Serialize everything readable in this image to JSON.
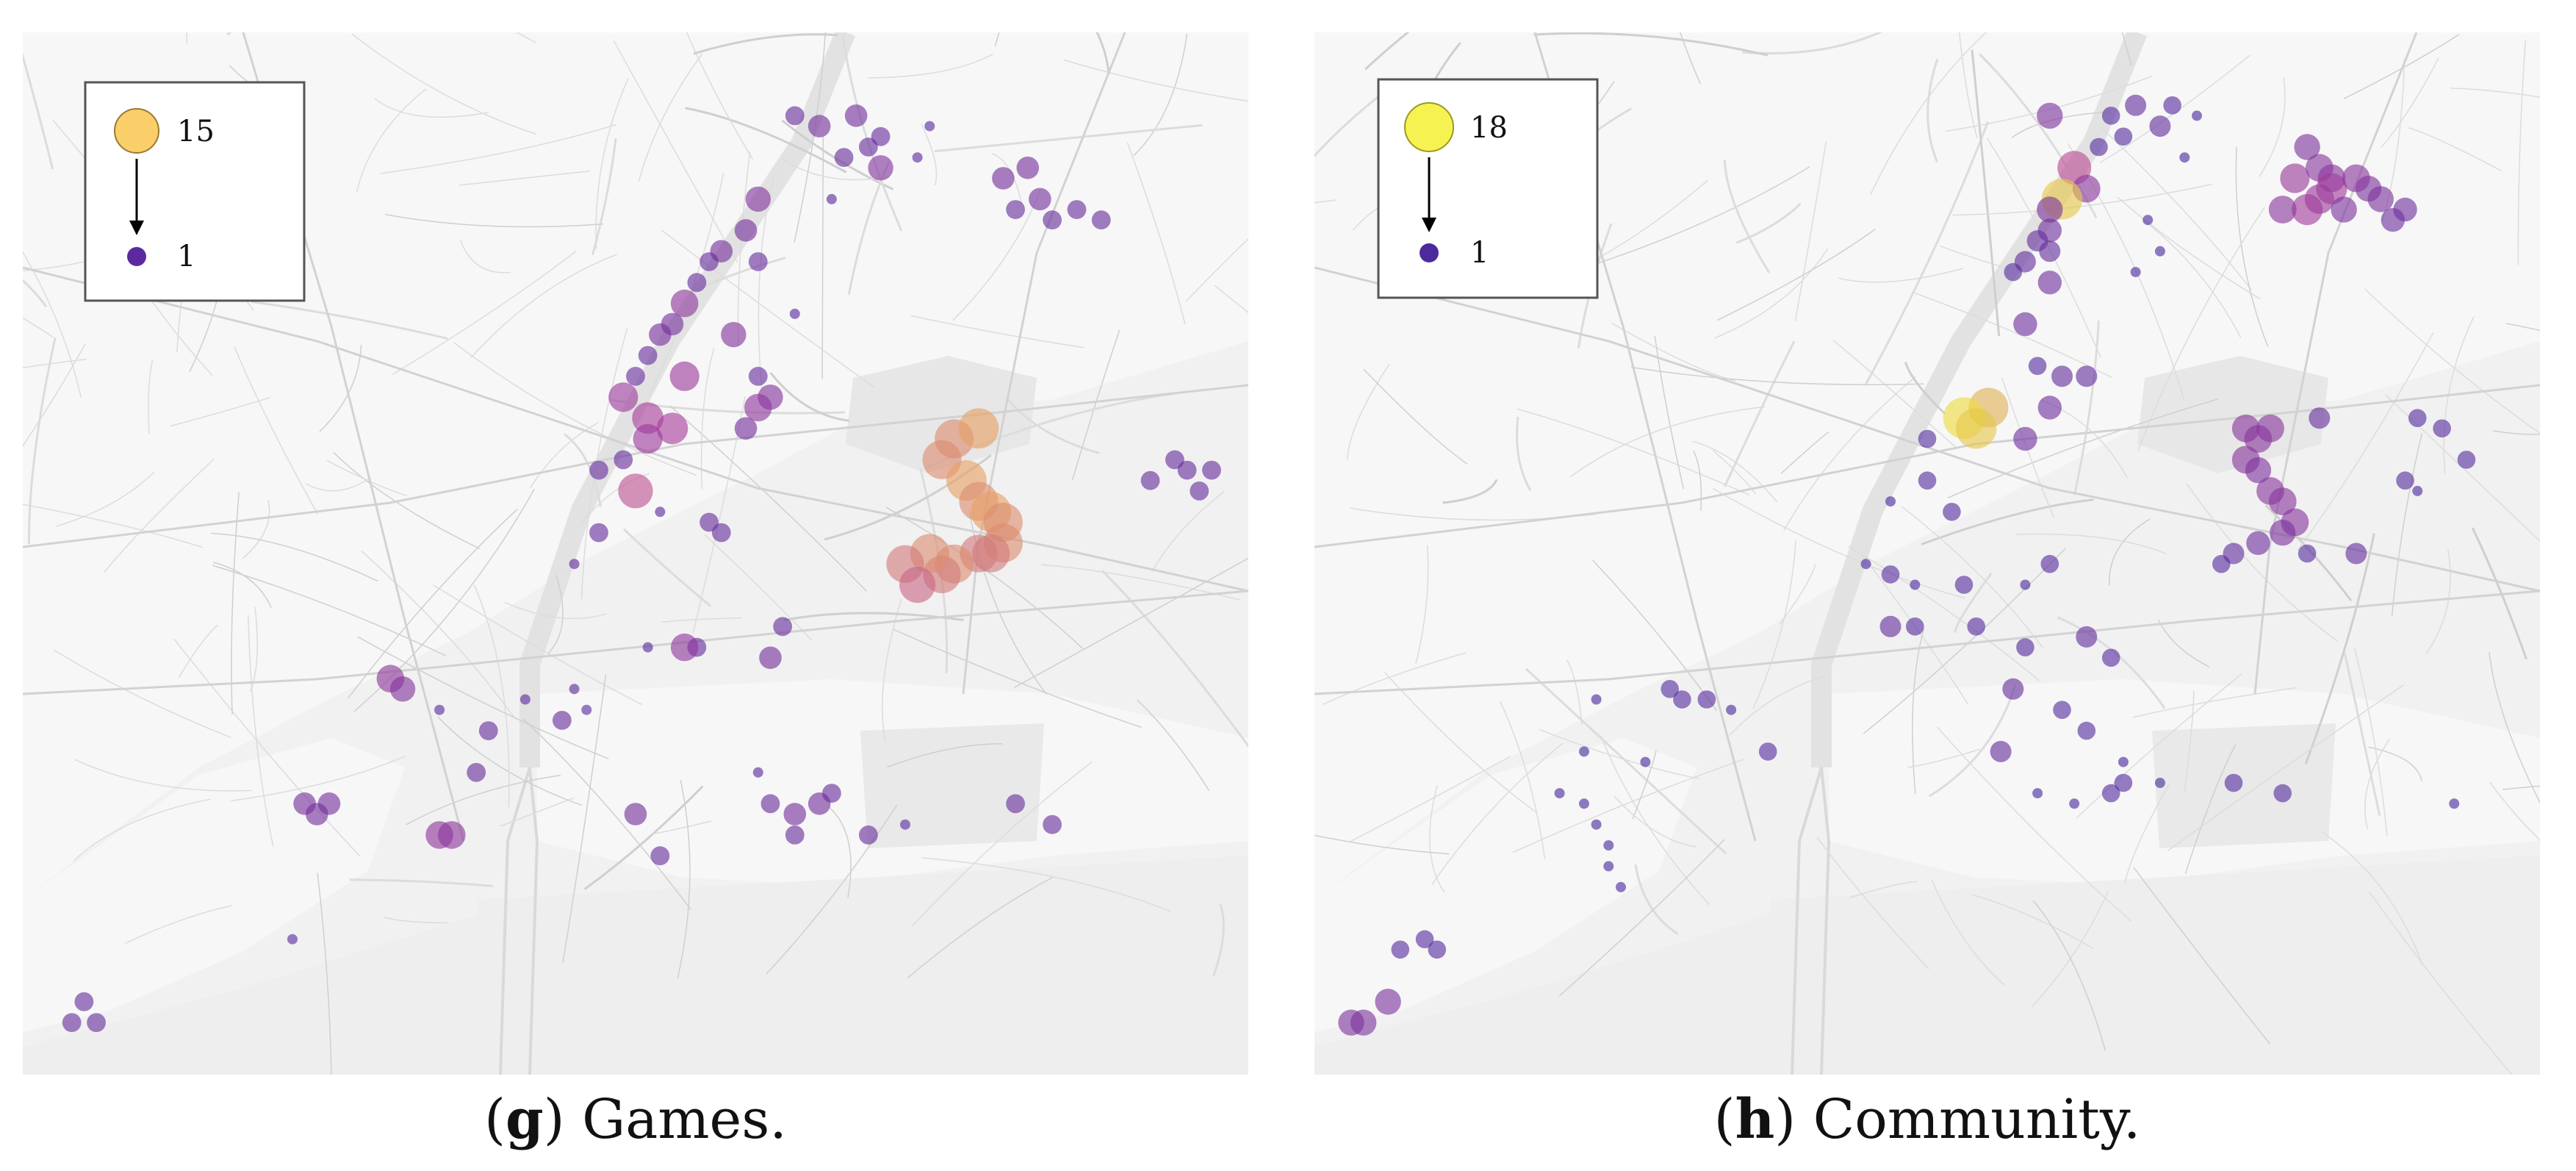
{
  "panels": [
    {
      "id": "g",
      "legend": {
        "max_label": "15",
        "min_label": "1",
        "max_color": "#F9C74F",
        "min_color": "#5B2A9E"
      },
      "caption": {
        "letter": "g",
        "text": "Games."
      },
      "points": [
        {
          "x": 0.63,
          "y": 0.08,
          "v": 2
        },
        {
          "x": 0.65,
          "y": 0.09,
          "v": 3
        },
        {
          "x": 0.68,
          "y": 0.08,
          "v": 3
        },
        {
          "x": 0.69,
          "y": 0.11,
          "v": 2
        },
        {
          "x": 0.7,
          "y": 0.1,
          "v": 2
        },
        {
          "x": 0.67,
          "y": 0.12,
          "v": 2
        },
        {
          "x": 0.74,
          "y": 0.09,
          "v": 1
        },
        {
          "x": 0.73,
          "y": 0.12,
          "v": 1
        },
        {
          "x": 0.8,
          "y": 0.14,
          "v": 3
        },
        {
          "x": 0.82,
          "y": 0.13,
          "v": 3
        },
        {
          "x": 0.83,
          "y": 0.16,
          "v": 3
        },
        {
          "x": 0.81,
          "y": 0.17,
          "v": 2
        },
        {
          "x": 0.84,
          "y": 0.18,
          "v": 2
        },
        {
          "x": 0.86,
          "y": 0.17,
          "v": 2
        },
        {
          "x": 0.88,
          "y": 0.18,
          "v": 2
        },
        {
          "x": 0.7,
          "y": 0.13,
          "v": 4
        },
        {
          "x": 0.66,
          "y": 0.16,
          "v": 1
        },
        {
          "x": 0.6,
          "y": 0.16,
          "v": 4
        },
        {
          "x": 0.59,
          "y": 0.19,
          "v": 3
        },
        {
          "x": 0.57,
          "y": 0.21,
          "v": 3
        },
        {
          "x": 0.56,
          "y": 0.22,
          "v": 2
        },
        {
          "x": 0.55,
          "y": 0.24,
          "v": 2
        },
        {
          "x": 0.54,
          "y": 0.26,
          "v": 5
        },
        {
          "x": 0.53,
          "y": 0.28,
          "v": 3
        },
        {
          "x": 0.52,
          "y": 0.29,
          "v": 3
        },
        {
          "x": 0.51,
          "y": 0.31,
          "v": 2
        },
        {
          "x": 0.5,
          "y": 0.33,
          "v": 2
        },
        {
          "x": 0.6,
          "y": 0.22,
          "v": 2
        },
        {
          "x": 0.58,
          "y": 0.29,
          "v": 4
        },
        {
          "x": 0.63,
          "y": 0.27,
          "v": 1
        },
        {
          "x": 0.6,
          "y": 0.33,
          "v": 2
        },
        {
          "x": 0.61,
          "y": 0.35,
          "v": 4
        },
        {
          "x": 0.54,
          "y": 0.33,
          "v": 6
        },
        {
          "x": 0.49,
          "y": 0.35,
          "v": 6
        },
        {
          "x": 0.51,
          "y": 0.37,
          "v": 7
        },
        {
          "x": 0.53,
          "y": 0.38,
          "v": 7
        },
        {
          "x": 0.51,
          "y": 0.39,
          "v": 6
        },
        {
          "x": 0.6,
          "y": 0.36,
          "v": 5
        },
        {
          "x": 0.59,
          "y": 0.38,
          "v": 3
        },
        {
          "x": 0.49,
          "y": 0.41,
          "v": 2
        },
        {
          "x": 0.5,
          "y": 0.44,
          "v": 9
        },
        {
          "x": 0.47,
          "y": 0.42,
          "v": 2
        },
        {
          "x": 0.52,
          "y": 0.46,
          "v": 1
        },
        {
          "x": 0.56,
          "y": 0.47,
          "v": 2
        },
        {
          "x": 0.57,
          "y": 0.48,
          "v": 2
        },
        {
          "x": 0.47,
          "y": 0.48,
          "v": 2
        },
        {
          "x": 0.45,
          "y": 0.51,
          "v": 1
        },
        {
          "x": 0.76,
          "y": 0.39,
          "v": 12
        },
        {
          "x": 0.78,
          "y": 0.38,
          "v": 13
        },
        {
          "x": 0.75,
          "y": 0.41,
          "v": 12
        },
        {
          "x": 0.77,
          "y": 0.43,
          "v": 13
        },
        {
          "x": 0.78,
          "y": 0.45,
          "v": 12
        },
        {
          "x": 0.79,
          "y": 0.46,
          "v": 13
        },
        {
          "x": 0.8,
          "y": 0.47,
          "v": 12
        },
        {
          "x": 0.8,
          "y": 0.49,
          "v": 12
        },
        {
          "x": 0.79,
          "y": 0.5,
          "v": 11
        },
        {
          "x": 0.78,
          "y": 0.5,
          "v": 11
        },
        {
          "x": 0.76,
          "y": 0.51,
          "v": 12
        },
        {
          "x": 0.75,
          "y": 0.52,
          "v": 11
        },
        {
          "x": 0.74,
          "y": 0.5,
          "v": 12
        },
        {
          "x": 0.72,
          "y": 0.51,
          "v": 11
        },
        {
          "x": 0.73,
          "y": 0.53,
          "v": 10
        },
        {
          "x": 0.62,
          "y": 0.57,
          "v": 2
        },
        {
          "x": 0.55,
          "y": 0.59,
          "v": 2
        },
        {
          "x": 0.61,
          "y": 0.6,
          "v": 3
        },
        {
          "x": 0.54,
          "y": 0.59,
          "v": 5
        },
        {
          "x": 0.51,
          "y": 0.59,
          "v": 1
        },
        {
          "x": 0.3,
          "y": 0.62,
          "v": 5
        },
        {
          "x": 0.31,
          "y": 0.63,
          "v": 4
        },
        {
          "x": 0.34,
          "y": 0.65,
          "v": 1
        },
        {
          "x": 0.38,
          "y": 0.67,
          "v": 2
        },
        {
          "x": 0.41,
          "y": 0.64,
          "v": 1
        },
        {
          "x": 0.45,
          "y": 0.63,
          "v": 1
        },
        {
          "x": 0.46,
          "y": 0.65,
          "v": 1
        },
        {
          "x": 0.44,
          "y": 0.66,
          "v": 2
        },
        {
          "x": 0.23,
          "y": 0.74,
          "v": 3
        },
        {
          "x": 0.24,
          "y": 0.75,
          "v": 3
        },
        {
          "x": 0.25,
          "y": 0.74,
          "v": 3
        },
        {
          "x": 0.34,
          "y": 0.77,
          "v": 5
        },
        {
          "x": 0.35,
          "y": 0.77,
          "v": 5
        },
        {
          "x": 0.37,
          "y": 0.71,
          "v": 2
        },
        {
          "x": 0.5,
          "y": 0.75,
          "v": 3
        },
        {
          "x": 0.52,
          "y": 0.79,
          "v": 2
        },
        {
          "x": 0.61,
          "y": 0.74,
          "v": 2
        },
        {
          "x": 0.63,
          "y": 0.75,
          "v": 3
        },
        {
          "x": 0.65,
          "y": 0.74,
          "v": 3
        },
        {
          "x": 0.66,
          "y": 0.73,
          "v": 2
        },
        {
          "x": 0.63,
          "y": 0.77,
          "v": 2
        },
        {
          "x": 0.6,
          "y": 0.71,
          "v": 1
        },
        {
          "x": 0.69,
          "y": 0.77,
          "v": 2
        },
        {
          "x": 0.72,
          "y": 0.76,
          "v": 1
        },
        {
          "x": 0.81,
          "y": 0.74,
          "v": 2
        },
        {
          "x": 0.84,
          "y": 0.76,
          "v": 2
        },
        {
          "x": 0.92,
          "y": 0.43,
          "v": 2
        },
        {
          "x": 0.94,
          "y": 0.41,
          "v": 2
        },
        {
          "x": 0.95,
          "y": 0.42,
          "v": 2
        },
        {
          "x": 0.97,
          "y": 0.42,
          "v": 2
        },
        {
          "x": 0.96,
          "y": 0.44,
          "v": 2
        },
        {
          "x": 0.05,
          "y": 0.93,
          "v": 2
        },
        {
          "x": 0.06,
          "y": 0.95,
          "v": 2
        },
        {
          "x": 0.04,
          "y": 0.95,
          "v": 2
        },
        {
          "x": 0.22,
          "y": 0.87,
          "v": 1
        }
      ]
    },
    {
      "id": "h",
      "legend": {
        "max_label": "18",
        "min_label": "1",
        "max_color": "#F4F033",
        "min_color": "#4B2A9E"
      },
      "caption": {
        "letter": "h",
        "text": "Community."
      },
      "points": [
        {
          "x": 0.65,
          "y": 0.08,
          "v": 2
        },
        {
          "x": 0.67,
          "y": 0.07,
          "v": 3
        },
        {
          "x": 0.69,
          "y": 0.09,
          "v": 3
        },
        {
          "x": 0.66,
          "y": 0.1,
          "v": 2
        },
        {
          "x": 0.7,
          "y": 0.07,
          "v": 2
        },
        {
          "x": 0.64,
          "y": 0.11,
          "v": 2
        },
        {
          "x": 0.72,
          "y": 0.08,
          "v": 1
        },
        {
          "x": 0.71,
          "y": 0.12,
          "v": 1
        },
        {
          "x": 0.6,
          "y": 0.08,
          "v": 5
        },
        {
          "x": 0.62,
          "y": 0.13,
          "v": 10
        },
        {
          "x": 0.63,
          "y": 0.15,
          "v": 6
        },
        {
          "x": 0.61,
          "y": 0.16,
          "v": 16
        },
        {
          "x": 0.6,
          "y": 0.17,
          "v": 5
        },
        {
          "x": 0.6,
          "y": 0.19,
          "v": 4
        },
        {
          "x": 0.59,
          "y": 0.2,
          "v": 3
        },
        {
          "x": 0.6,
          "y": 0.21,
          "v": 3
        },
        {
          "x": 0.58,
          "y": 0.22,
          "v": 3
        },
        {
          "x": 0.57,
          "y": 0.23,
          "v": 2
        },
        {
          "x": 0.6,
          "y": 0.24,
          "v": 4
        },
        {
          "x": 0.81,
          "y": 0.11,
          "v": 5
        },
        {
          "x": 0.82,
          "y": 0.13,
          "v": 6
        },
        {
          "x": 0.8,
          "y": 0.14,
          "v": 7
        },
        {
          "x": 0.83,
          "y": 0.14,
          "v": 6
        },
        {
          "x": 0.82,
          "y": 0.16,
          "v": 7
        },
        {
          "x": 0.81,
          "y": 0.17,
          "v": 8
        },
        {
          "x": 0.79,
          "y": 0.17,
          "v": 6
        },
        {
          "x": 0.83,
          "y": 0.15,
          "v": 8
        },
        {
          "x": 0.84,
          "y": 0.17,
          "v": 5
        },
        {
          "x": 0.86,
          "y": 0.15,
          "v": 5
        },
        {
          "x": 0.87,
          "y": 0.16,
          "v": 5
        },
        {
          "x": 0.85,
          "y": 0.14,
          "v": 6
        },
        {
          "x": 0.88,
          "y": 0.18,
          "v": 4
        },
        {
          "x": 0.89,
          "y": 0.17,
          "v": 4
        },
        {
          "x": 0.68,
          "y": 0.18,
          "v": 1
        },
        {
          "x": 0.69,
          "y": 0.21,
          "v": 1
        },
        {
          "x": 0.67,
          "y": 0.23,
          "v": 1
        },
        {
          "x": 0.58,
          "y": 0.28,
          "v": 4
        },
        {
          "x": 0.59,
          "y": 0.32,
          "v": 2
        },
        {
          "x": 0.55,
          "y": 0.36,
          "v": 15
        },
        {
          "x": 0.53,
          "y": 0.37,
          "v": 17
        },
        {
          "x": 0.54,
          "y": 0.38,
          "v": 16
        },
        {
          "x": 0.61,
          "y": 0.33,
          "v": 3
        },
        {
          "x": 0.63,
          "y": 0.33,
          "v": 3
        },
        {
          "x": 0.6,
          "y": 0.36,
          "v": 4
        },
        {
          "x": 0.58,
          "y": 0.39,
          "v": 4
        },
        {
          "x": 0.5,
          "y": 0.39,
          "v": 2
        },
        {
          "x": 0.5,
          "y": 0.43,
          "v": 2
        },
        {
          "x": 0.52,
          "y": 0.46,
          "v": 2
        },
        {
          "x": 0.47,
          "y": 0.45,
          "v": 1
        },
        {
          "x": 0.76,
          "y": 0.38,
          "v": 6
        },
        {
          "x": 0.77,
          "y": 0.39,
          "v": 6
        },
        {
          "x": 0.78,
          "y": 0.38,
          "v": 6
        },
        {
          "x": 0.76,
          "y": 0.41,
          "v": 6
        },
        {
          "x": 0.77,
          "y": 0.42,
          "v": 5
        },
        {
          "x": 0.78,
          "y": 0.44,
          "v": 6
        },
        {
          "x": 0.79,
          "y": 0.45,
          "v": 6
        },
        {
          "x": 0.8,
          "y": 0.47,
          "v": 6
        },
        {
          "x": 0.79,
          "y": 0.48,
          "v": 5
        },
        {
          "x": 0.77,
          "y": 0.49,
          "v": 4
        },
        {
          "x": 0.75,
          "y": 0.5,
          "v": 3
        },
        {
          "x": 0.74,
          "y": 0.51,
          "v": 2
        },
        {
          "x": 0.82,
          "y": 0.37,
          "v": 3
        },
        {
          "x": 0.9,
          "y": 0.37,
          "v": 2
        },
        {
          "x": 0.92,
          "y": 0.38,
          "v": 2
        },
        {
          "x": 0.94,
          "y": 0.41,
          "v": 2
        },
        {
          "x": 0.89,
          "y": 0.43,
          "v": 2
        },
        {
          "x": 0.9,
          "y": 0.44,
          "v": 1
        },
        {
          "x": 0.85,
          "y": 0.5,
          "v": 3
        },
        {
          "x": 0.81,
          "y": 0.5,
          "v": 2
        },
        {
          "x": 0.45,
          "y": 0.51,
          "v": 1
        },
        {
          "x": 0.47,
          "y": 0.52,
          "v": 2
        },
        {
          "x": 0.49,
          "y": 0.53,
          "v": 1
        },
        {
          "x": 0.53,
          "y": 0.53,
          "v": 2
        },
        {
          "x": 0.58,
          "y": 0.53,
          "v": 1
        },
        {
          "x": 0.6,
          "y": 0.51,
          "v": 2
        },
        {
          "x": 0.47,
          "y": 0.57,
          "v": 3
        },
        {
          "x": 0.49,
          "y": 0.57,
          "v": 2
        },
        {
          "x": 0.54,
          "y": 0.57,
          "v": 2
        },
        {
          "x": 0.58,
          "y": 0.59,
          "v": 2
        },
        {
          "x": 0.63,
          "y": 0.58,
          "v": 3
        },
        {
          "x": 0.65,
          "y": 0.6,
          "v": 2
        },
        {
          "x": 0.57,
          "y": 0.63,
          "v": 3
        },
        {
          "x": 0.61,
          "y": 0.65,
          "v": 2
        },
        {
          "x": 0.63,
          "y": 0.67,
          "v": 2
        },
        {
          "x": 0.66,
          "y": 0.7,
          "v": 1
        },
        {
          "x": 0.56,
          "y": 0.69,
          "v": 3
        },
        {
          "x": 0.69,
          "y": 0.72,
          "v": 1
        },
        {
          "x": 0.29,
          "y": 0.63,
          "v": 2
        },
        {
          "x": 0.3,
          "y": 0.64,
          "v": 2
        },
        {
          "x": 0.23,
          "y": 0.64,
          "v": 1
        },
        {
          "x": 0.22,
          "y": 0.69,
          "v": 1
        },
        {
          "x": 0.2,
          "y": 0.73,
          "v": 1
        },
        {
          "x": 0.22,
          "y": 0.74,
          "v": 1
        },
        {
          "x": 0.23,
          "y": 0.76,
          "v": 1
        },
        {
          "x": 0.24,
          "y": 0.78,
          "v": 1
        },
        {
          "x": 0.24,
          "y": 0.8,
          "v": 1
        },
        {
          "x": 0.25,
          "y": 0.82,
          "v": 1
        },
        {
          "x": 0.27,
          "y": 0.7,
          "v": 1
        },
        {
          "x": 0.32,
          "y": 0.64,
          "v": 2
        },
        {
          "x": 0.34,
          "y": 0.65,
          "v": 1
        },
        {
          "x": 0.37,
          "y": 0.69,
          "v": 2
        },
        {
          "x": 0.65,
          "y": 0.73,
          "v": 2
        },
        {
          "x": 0.66,
          "y": 0.72,
          "v": 2
        },
        {
          "x": 0.62,
          "y": 0.74,
          "v": 1
        },
        {
          "x": 0.59,
          "y": 0.73,
          "v": 1
        },
        {
          "x": 0.75,
          "y": 0.72,
          "v": 2
        },
        {
          "x": 0.79,
          "y": 0.73,
          "v": 2
        },
        {
          "x": 0.93,
          "y": 0.74,
          "v": 1
        },
        {
          "x": 0.07,
          "y": 0.88,
          "v": 2
        },
        {
          "x": 0.09,
          "y": 0.87,
          "v": 2
        },
        {
          "x": 0.1,
          "y": 0.88,
          "v": 2
        },
        {
          "x": 0.06,
          "y": 0.93,
          "v": 5
        },
        {
          "x": 0.04,
          "y": 0.95,
          "v": 5
        },
        {
          "x": 0.03,
          "y": 0.95,
          "v": 5
        }
      ]
    }
  ]
}
